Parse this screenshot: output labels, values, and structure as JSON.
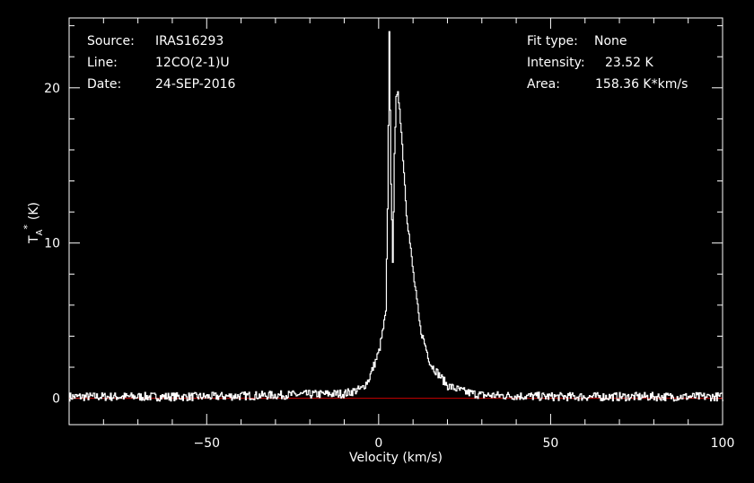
{
  "header_left": {
    "source_label": "Source:",
    "source_value": "IRAS16293",
    "line_label": "Line:",
    "line_value": "12CO(2-1)U",
    "date_label": "Date:",
    "date_value": "24-SEP-2016"
  },
  "header_right": {
    "fit_label": "Fit type:",
    "fit_value": "None",
    "intensity_label": "Intensity:",
    "intensity_value": "23.52 K",
    "area_label": "Area:",
    "area_value": "158.36 K*km/s"
  },
  "chart_data": {
    "type": "line",
    "title": "",
    "xlabel": "Velocity (km/s)",
    "ylabel": "T_A* (K)",
    "ylabel_main": "T",
    "ylabel_sub": "A",
    "ylabel_sup": "*",
    "ylabel_unit": "(K)",
    "xlim": [
      -90,
      100
    ],
    "ylim": [
      -1.7,
      24.5
    ],
    "xticks": [
      -50,
      0,
      50,
      100
    ],
    "xtick_labels": [
      "−50",
      "0",
      "50",
      "100"
    ],
    "yticks": [
      0,
      10,
      20
    ],
    "ytick_labels": [
      "0",
      "10",
      "20"
    ],
    "baseline": 0,
    "colors": {
      "spectrum": "#ffffff",
      "baseline": "#cc0000",
      "axes": "#ffffff",
      "background": "#000000"
    },
    "series": [
      {
        "x": [
          -90,
          -50,
          -10,
          -5,
          -3,
          0,
          1,
          2,
          2.5,
          3,
          3.5,
          4,
          4.5,
          5,
          5.5,
          6,
          7,
          8,
          10,
          12,
          15,
          20,
          25,
          30,
          50,
          100
        ],
        "y": [
          0.1,
          0.1,
          0.3,
          0.6,
          1.2,
          3,
          4.2,
          5.5,
          12,
          23.5,
          14,
          8.5,
          16,
          19.2,
          19.5,
          18.8,
          15.5,
          12,
          8,
          4.5,
          2.2,
          0.8,
          0.4,
          0.2,
          0.1,
          0.1
        ]
      }
    ]
  }
}
